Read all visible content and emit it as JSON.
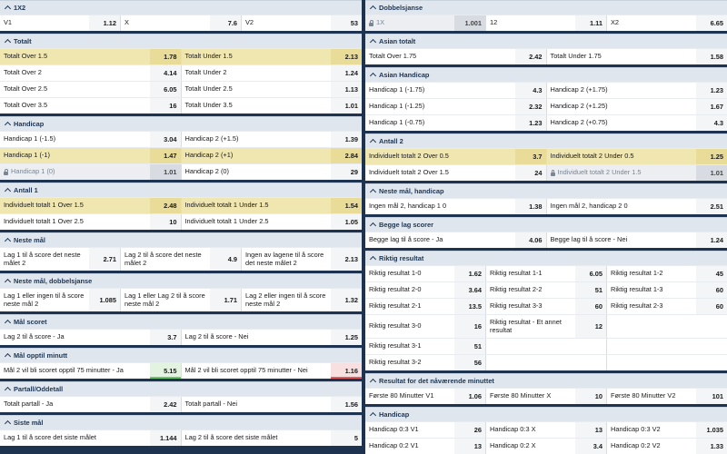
{
  "colors": {
    "background": "#1e3350",
    "header": "#dfe6ee",
    "highlight": "#f0e6b0",
    "odds_up": "#6cc36c",
    "odds_down": "#e05d5d"
  },
  "icons": {
    "collapse": "chevron-up-icon",
    "locked": "lock-icon"
  },
  "left": [
    {
      "title": "1X2",
      "rows": [
        [
          {
            "label": "V1",
            "odds": "1.12"
          },
          {
            "label": "X",
            "odds": "7.6"
          },
          {
            "label": "V2",
            "odds": "53"
          }
        ]
      ]
    },
    {
      "title": "Totalt",
      "rows": [
        [
          {
            "label": "Totalt Over 1.5",
            "odds": "1.78",
            "state": "hl"
          },
          {
            "label": "Totalt Under 1.5",
            "odds": "2.13",
            "state": "hl"
          }
        ],
        [
          {
            "label": "Totalt Over 2",
            "odds": "4.14"
          },
          {
            "label": "Totalt Under 2",
            "odds": "1.24"
          }
        ],
        [
          {
            "label": "Totalt Over 2.5",
            "odds": "6.05"
          },
          {
            "label": "Totalt Under 2.5",
            "odds": "1.13"
          }
        ],
        [
          {
            "label": "Totalt Over 3.5",
            "odds": "16"
          },
          {
            "label": "Totalt Under 3.5",
            "odds": "1.01"
          }
        ]
      ]
    },
    {
      "title": "Handicap",
      "rows": [
        [
          {
            "label": "Handicap 1 (-1.5)",
            "odds": "3.04"
          },
          {
            "label": "Handicap 2 (+1.5)",
            "odds": "1.39"
          }
        ],
        [
          {
            "label": "Handicap 1 (-1)",
            "odds": "1.47",
            "state": "hl"
          },
          {
            "label": "Handicap 2 (+1)",
            "odds": "2.84",
            "state": "hl"
          }
        ],
        [
          {
            "label": "Handicap 1 (0)",
            "odds": "1.01",
            "state": "locked"
          },
          {
            "label": "Handicap 2 (0)",
            "odds": "29"
          }
        ]
      ]
    },
    {
      "title": "Antall 1",
      "rows": [
        [
          {
            "label": "Individuelt totalt 1 Over 1.5",
            "odds": "2.48",
            "state": "hl"
          },
          {
            "label": "Individuelt totalt 1 Under 1.5",
            "odds": "1.54",
            "state": "hl"
          }
        ],
        [
          {
            "label": "Individuelt totalt 1 Over 2.5",
            "odds": "10"
          },
          {
            "label": "Individuelt totalt 1 Under 2.5",
            "odds": "1.05"
          }
        ]
      ]
    },
    {
      "title": "Neste mål",
      "rows": [
        [
          {
            "label": "Lag 1 til å score det neste målet 2",
            "odds": "2.71"
          },
          {
            "label": "Lag 2 til å score det neste målet 2",
            "odds": "4.9"
          },
          {
            "label": "Ingen av lagene til å score det neste målet 2",
            "odds": "2.13"
          }
        ]
      ]
    },
    {
      "title": "Neste mål, dobbelsjanse",
      "rows": [
        [
          {
            "label": "Lag 1 eller ingen til å score neste mål 2",
            "odds": "1.085"
          },
          {
            "label": "Lag 1 eller Lag 2 til å score neste mål 2",
            "odds": "1.71"
          },
          {
            "label": "Lag 2 eller ingen til å score neste mål 2",
            "odds": "1.32"
          }
        ]
      ]
    },
    {
      "title": "Mål scoret",
      "rows": [
        [
          {
            "label": "Lag 2 til å score - Ja",
            "odds": "3.7"
          },
          {
            "label": "Lag 2 til å score - Nei",
            "odds": "1.25"
          }
        ]
      ]
    },
    {
      "title": "Mål opptil minutt",
      "rows": [
        [
          {
            "label": "Mål 2 vil bli scoret opptil 75 minutter - Ja",
            "odds": "5.15",
            "move": "up"
          },
          {
            "label": "Mål 2 vil bli scoret opptil 75 minutter - Nei",
            "odds": "1.16",
            "move": "down"
          }
        ]
      ]
    },
    {
      "title": "Partall/Oddetall",
      "rows": [
        [
          {
            "label": "Totalt partall - Ja",
            "odds": "2.42"
          },
          {
            "label": "Totalt partall - Nei",
            "odds": "1.56"
          }
        ]
      ]
    },
    {
      "title": "Siste mål",
      "rows": [
        [
          {
            "label": "Lag 1 til å score det siste målet",
            "odds": "1.144"
          },
          {
            "label": "Lag 2 til å score det siste målet",
            "odds": "5"
          }
        ]
      ]
    }
  ],
  "right": [
    {
      "title": "Dobbelsjanse",
      "rows": [
        [
          {
            "label": "1X",
            "odds": "1.001",
            "state": "locked"
          },
          {
            "label": "12",
            "odds": "1.11"
          },
          {
            "label": "X2",
            "odds": "6.65"
          }
        ]
      ]
    },
    {
      "title": "Asian totalt",
      "rows": [
        [
          {
            "label": "Totalt Over 1.75",
            "odds": "2.42"
          },
          {
            "label": "Totalt Under 1.75",
            "odds": "1.58"
          }
        ]
      ]
    },
    {
      "title": "Asian Handicap",
      "rows": [
        [
          {
            "label": "Handicap 1 (-1.75)",
            "odds": "4.3"
          },
          {
            "label": "Handicap 2 (+1.75)",
            "odds": "1.23"
          }
        ],
        [
          {
            "label": "Handicap 1 (-1.25)",
            "odds": "2.32"
          },
          {
            "label": "Handicap 2 (+1.25)",
            "odds": "1.67"
          }
        ],
        [
          {
            "label": "Handicap 1 (-0.75)",
            "odds": "1.23"
          },
          {
            "label": "Handicap 2 (+0.75)",
            "odds": "4.3"
          }
        ]
      ]
    },
    {
      "title": "Antall 2",
      "rows": [
        [
          {
            "label": "Individuelt totalt 2 Over 0.5",
            "odds": "3.7",
            "state": "hl"
          },
          {
            "label": "Individuelt totalt 2 Under 0.5",
            "odds": "1.25",
            "state": "hl"
          }
        ],
        [
          {
            "label": "Individuelt totalt 2 Over 1.5",
            "odds": "24"
          },
          {
            "label": "Individuelt totalt 2 Under 1.5",
            "odds": "1.01",
            "state": "locked"
          }
        ]
      ]
    },
    {
      "title": "Neste mål, handicap",
      "rows": [
        [
          {
            "label": "Ingen mål 2, handicap 1 0",
            "odds": "1.38"
          },
          {
            "label": "Ingen mål 2, handicap 2 0",
            "odds": "2.51"
          }
        ]
      ]
    },
    {
      "title": "Begge lag scorer",
      "rows": [
        [
          {
            "label": "Begge lag til å score - Ja",
            "odds": "4.06"
          },
          {
            "label": "Begge lag til å score - Nei",
            "odds": "1.24"
          }
        ]
      ]
    },
    {
      "title": "Riktig resultat",
      "rows": [
        [
          {
            "label": "Riktig resultat 1-0",
            "odds": "1.62"
          },
          {
            "label": "Riktig resultat 1-1",
            "odds": "6.05"
          },
          {
            "label": "Riktig resultat 1-2",
            "odds": "45"
          }
        ],
        [
          {
            "label": "Riktig resultat 2-0",
            "odds": "3.64"
          },
          {
            "label": "Riktig resultat 2-2",
            "odds": "51"
          },
          {
            "label": "Riktig resultat 1-3",
            "odds": "60"
          }
        ],
        [
          {
            "label": "Riktig resultat 2-1",
            "odds": "13.5"
          },
          {
            "label": "Riktig resultat 3-3",
            "odds": "60"
          },
          {
            "label": "Riktig resultat 2-3",
            "odds": "60"
          }
        ],
        [
          {
            "label": "Riktig resultat 3-0",
            "odds": "16"
          },
          {
            "label": "Riktig resultat - Et annet resultat",
            "odds": "12"
          },
          {
            "label": "",
            "odds": "",
            "state": "blank"
          }
        ],
        [
          {
            "label": "Riktig resultat 3-1",
            "odds": "51"
          },
          {
            "label": "",
            "odds": "",
            "state": "blank"
          },
          {
            "label": "",
            "odds": "",
            "state": "blank"
          }
        ],
        [
          {
            "label": "Riktig resultat 3-2",
            "odds": "56"
          },
          {
            "label": "",
            "odds": "",
            "state": "blank"
          },
          {
            "label": "",
            "odds": "",
            "state": "blank"
          }
        ]
      ]
    },
    {
      "title": "Resultat for det nåværende minuttet",
      "rows": [
        [
          {
            "label": "Første 80 Minutter V1",
            "odds": "1.06"
          },
          {
            "label": "Første 80 Minutter X",
            "odds": "10"
          },
          {
            "label": "Første 80 Minutter V2",
            "odds": "101"
          }
        ]
      ]
    },
    {
      "title": "Handicap",
      "rows": [
        [
          {
            "label": "Handicap 0:3 V1",
            "odds": "26"
          },
          {
            "label": "Handicap 0:3 X",
            "odds": "13"
          },
          {
            "label": "Handicap 0:3 V2",
            "odds": "1.035"
          }
        ],
        [
          {
            "label": "Handicap 0:2 V1",
            "odds": "13"
          },
          {
            "label": "Handicap 0:2 X",
            "odds": "3.4"
          },
          {
            "label": "Handicap 0:2 V2",
            "odds": "1.33"
          }
        ]
      ]
    }
  ]
}
